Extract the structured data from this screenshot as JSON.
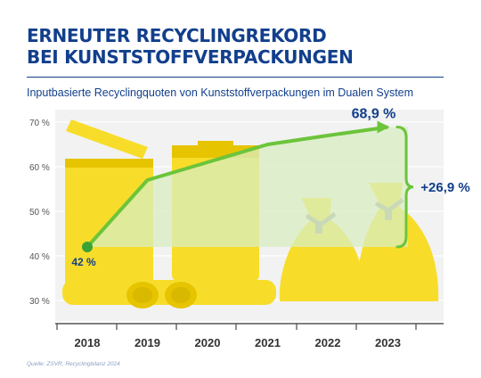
{
  "header": {
    "title_line1": "ERNEUTER RECYCLINGREKORD",
    "title_line2": "BEI KUNSTSTOFFVERPACKUNGEN",
    "subtitle": "Inputbasierte Recyclingquoten von Kunststoffverpackungen im Dualen System"
  },
  "source": "Quelle: ZSVR, Recyclingbilanz 2024",
  "colors": {
    "line": "#6cc43a",
    "marker": "#3aa335",
    "bins": "#f7dd2a",
    "bins_dark": "#e6c400",
    "shade": "#d8eec2",
    "text_blue": "#123f8c",
    "axis_text": "#555555"
  },
  "icons": [
    "recycling-bin-icon",
    "recycling-bag-icon"
  ],
  "chart_data": {
    "type": "line",
    "title": "",
    "xlabel": "",
    "ylabel": "",
    "categories": [
      "2018",
      "2019",
      "2020",
      "2021",
      "2022",
      "2023"
    ],
    "x": [
      2018,
      2019,
      2020,
      2021,
      2022,
      2023
    ],
    "values": [
      42,
      57,
      61,
      65,
      67,
      68.9
    ],
    "ylim": [
      25,
      72
    ],
    "y_ticks": [
      30,
      40,
      50,
      60,
      70
    ],
    "y_tick_labels": [
      "30 %",
      "40 %",
      "50 %",
      "60 %",
      "70 %"
    ],
    "grid": true,
    "legend": "none",
    "labels": {
      "start": "42 %",
      "end": "68,9 %",
      "increase": "+26,9 %"
    }
  }
}
